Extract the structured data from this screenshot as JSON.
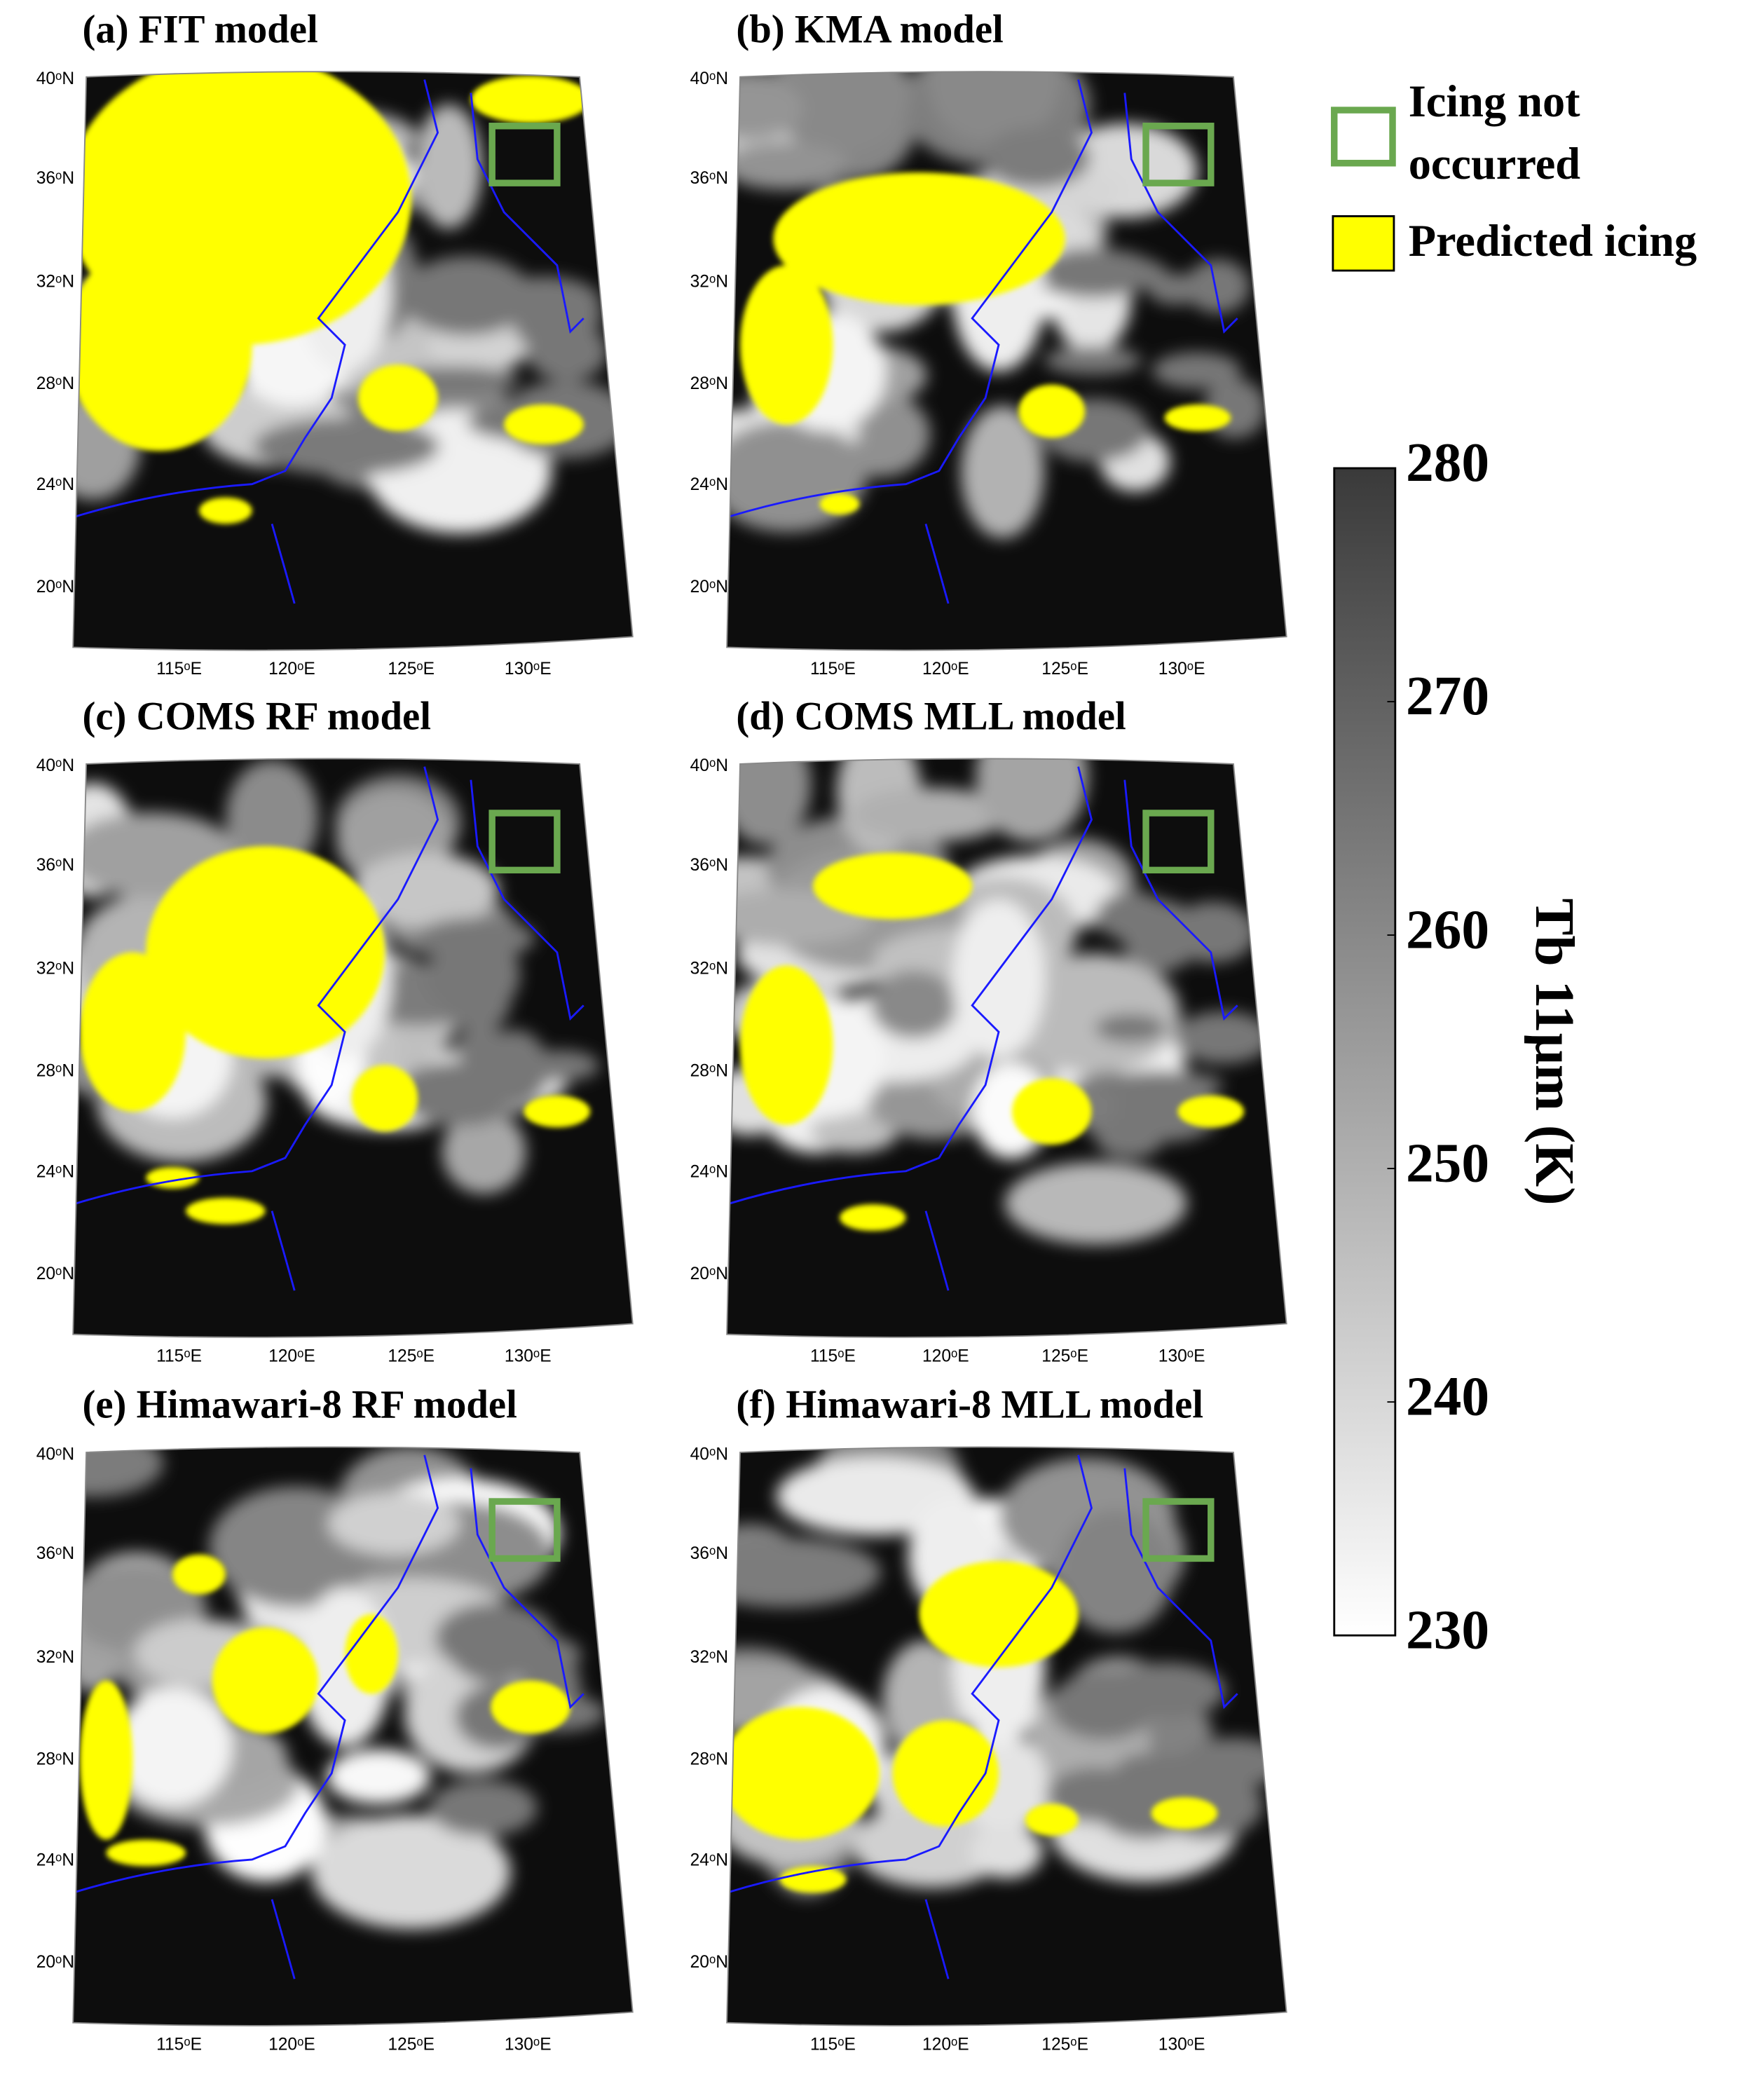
{
  "panels": [
    {
      "title": "(a) FIT model"
    },
    {
      "title": "(b) KMA model"
    },
    {
      "title": "(c) COMS RF model"
    },
    {
      "title": "(d) COMS MLL model"
    },
    {
      "title": "(e) Himawari-8 RF model"
    },
    {
      "title": "(f) Himawari-8 MLL model"
    }
  ],
  "lat_labels": [
    "40ᵒN",
    "36ᵒN",
    "32ᵒN",
    "28ᵒN",
    "24ᵒN",
    "20ᵒN"
  ],
  "lon_labels": [
    "115ᵒE",
    "120ᵒE",
    "125ᵒE",
    "130ᵒE"
  ],
  "legend": [
    {
      "label_lines": [
        "Icing not",
        "occurred"
      ]
    },
    {
      "label_lines": [
        "Predicted icing"
      ]
    }
  ],
  "colorbar": {
    "label": "Tb 11μm  (K)",
    "lim": [
      230,
      280
    ],
    "ticks": [
      230,
      240,
      250,
      260,
      270,
      280
    ]
  }
}
